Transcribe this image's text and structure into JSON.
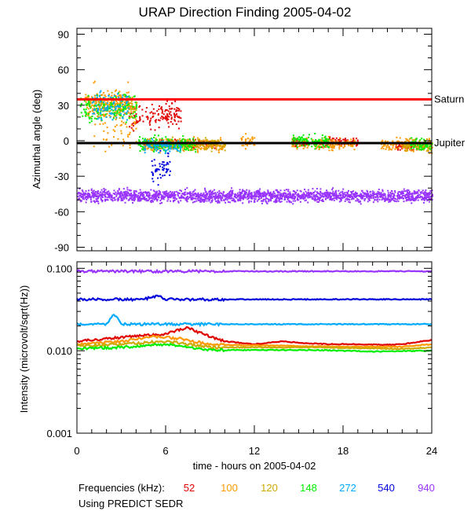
{
  "chart_data": [
    {
      "type": "scatter",
      "title": "URAP Direction Finding  2005-04-02",
      "ylabel": "Azimuthal angle (deg)",
      "xlim": [
        0,
        24
      ],
      "ylim": [
        -93,
        95
      ],
      "yticks": [
        90,
        60,
        30,
        0,
        -30,
        -60,
        -90
      ],
      "reference_lines": [
        {
          "name": "Saturn",
          "y": 35,
          "color": "#ff0000"
        },
        {
          "name": "Jupiter",
          "y": -2,
          "color": "#000000"
        }
      ],
      "series": [
        {
          "freq": "52",
          "color": "#e00000",
          "segments": [
            [
              3.5,
              7,
              22,
              10
            ],
            [
              4.5,
              9.5,
              -2,
              3
            ],
            [
              14.5,
              15.5,
              -1,
              3
            ],
            [
              16.5,
              19,
              -1,
              4
            ],
            [
              21.5,
              23,
              -4,
              3
            ]
          ]
        },
        {
          "freq": "100",
          "color": "#ff9900",
          "segments": [
            [
              0.5,
              3.5,
              32,
              10
            ],
            [
              4.5,
              10,
              -3,
              5
            ],
            [
              11,
              12,
              0,
              5
            ],
            [
              14.5,
              19,
              -2,
              5
            ],
            [
              20.5,
              24,
              -3,
              5
            ],
            [
              1,
              4,
              20,
              25
            ]
          ]
        },
        {
          "freq": "120",
          "color": "#ccaa00",
          "segments": [
            [
              0.5,
              4,
              30,
              10
            ],
            [
              4.5,
              10,
              -2,
              5
            ],
            [
              22,
              24,
              -3,
              5
            ]
          ]
        },
        {
          "freq": "148",
          "color": "#00ee00",
          "segments": [
            [
              0.2,
              4,
              28,
              12
            ],
            [
              4,
              8,
              -2,
              6
            ],
            [
              14.5,
              17,
              0,
              5
            ],
            [
              22.5,
              24,
              -3,
              5
            ]
          ]
        },
        {
          "freq": "272",
          "color": "#00aaff",
          "segments": [
            [
              1,
              3.5,
              30,
              12
            ],
            [
              4.5,
              7,
              -4,
              5
            ]
          ]
        },
        {
          "freq": "540",
          "color": "#0000dd",
          "segments": [
            [
              5,
              6.3,
              -22,
              12
            ]
          ]
        },
        {
          "freq": "940",
          "color": "#9933ff",
          "segments": [
            [
              0,
              24,
              -46,
              5
            ]
          ]
        }
      ]
    },
    {
      "type": "line",
      "xlabel": "time - hours on 2005-04-02",
      "ylabel": "Intensity (microvolt/sqrt(Hz))",
      "scale": "log",
      "xlim": [
        0,
        24
      ],
      "ylim": [
        0.001,
        0.12
      ],
      "ytick_labels": [
        "0.100",
        "0.010",
        "0.001"
      ],
      "xticks": [
        0,
        6,
        12,
        18,
        24
      ],
      "series": [
        {
          "freq": "940",
          "color": "#9933ff",
          "points": [
            [
              0,
              0.092
            ],
            [
              12,
              0.092
            ],
            [
              24,
              0.092
            ]
          ]
        },
        {
          "freq": "540",
          "color": "#0000dd",
          "points": [
            [
              0,
              0.042
            ],
            [
              4.5,
              0.042
            ],
            [
              5.5,
              0.046
            ],
            [
              6,
              0.042
            ],
            [
              24,
              0.042
            ]
          ]
        },
        {
          "freq": "272",
          "color": "#00aaff",
          "points": [
            [
              0,
              0.021
            ],
            [
              2,
              0.021
            ],
            [
              2.5,
              0.028
            ],
            [
              3,
              0.021
            ],
            [
              8,
              0.021
            ],
            [
              24,
              0.021
            ]
          ]
        },
        {
          "freq": "52",
          "color": "#e00000",
          "points": [
            [
              0,
              0.013
            ],
            [
              2,
              0.014
            ],
            [
              4,
              0.015
            ],
            [
              6,
              0.016
            ],
            [
              7.5,
              0.019
            ],
            [
              8.5,
              0.016
            ],
            [
              10,
              0.013
            ],
            [
              12,
              0.012
            ],
            [
              14,
              0.013
            ],
            [
              15,
              0.0125
            ],
            [
              17,
              0.012
            ],
            [
              19,
              0.012
            ],
            [
              21,
              0.0118
            ],
            [
              22,
              0.012
            ],
            [
              24,
              0.0135
            ]
          ]
        },
        {
          "freq": "100",
          "color": "#ff9900",
          "points": [
            [
              0,
              0.012
            ],
            [
              3,
              0.013
            ],
            [
              5,
              0.015
            ],
            [
              7,
              0.014
            ],
            [
              9,
              0.0118
            ],
            [
              14,
              0.0115
            ],
            [
              18,
              0.0112
            ],
            [
              22,
              0.0112
            ],
            [
              24,
              0.012
            ]
          ]
        },
        {
          "freq": "120",
          "color": "#ccaa00",
          "points": [
            [
              0,
              0.0115
            ],
            [
              3,
              0.012
            ],
            [
              6,
              0.013
            ],
            [
              9,
              0.011
            ],
            [
              16,
              0.011
            ],
            [
              22,
              0.0105
            ],
            [
              24,
              0.011
            ]
          ]
        },
        {
          "freq": "148",
          "color": "#00ee00",
          "points": [
            [
              0,
              0.0105
            ],
            [
              3,
              0.011
            ],
            [
              6,
              0.012
            ],
            [
              9,
              0.0102
            ],
            [
              16,
              0.0102
            ],
            [
              20,
              0.0098
            ],
            [
              24,
              0.01
            ]
          ]
        }
      ]
    }
  ],
  "xtick_labels": [
    "0",
    "6",
    "12",
    "18",
    "24"
  ],
  "legend": {
    "prefix": "Frequencies (kHz):",
    "items": [
      {
        "label": "52",
        "color": "#e00000"
      },
      {
        "label": "100",
        "color": "#ff9900"
      },
      {
        "label": "120",
        "color": "#ccaa00"
      },
      {
        "label": "148",
        "color": "#00ee00"
      },
      {
        "label": "272",
        "color": "#00aaff"
      },
      {
        "label": "540",
        "color": "#0000dd"
      },
      {
        "label": "940",
        "color": "#9933ff"
      }
    ],
    "source_note": "Using PREDICT SEDR"
  }
}
